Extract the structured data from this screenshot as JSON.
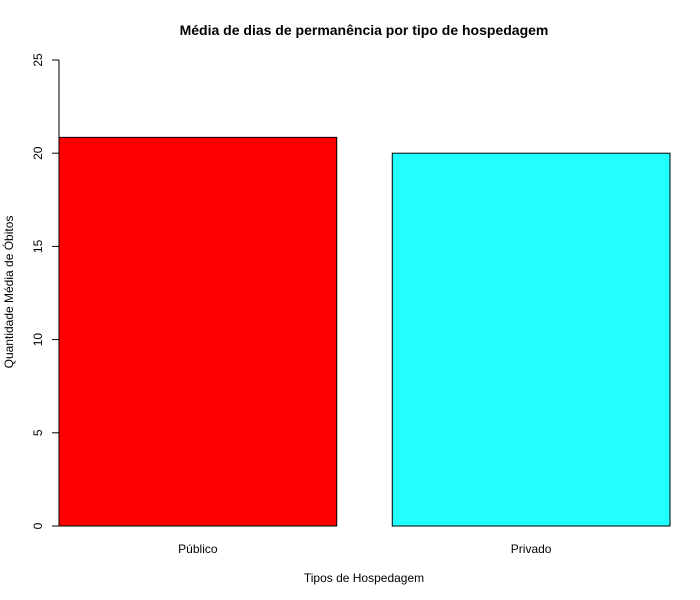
{
  "chart_data": {
    "type": "bar",
    "title": "Média de dias de permanência por tipo de hospedagem",
    "xlabel": "Tipos de Hospedagem",
    "ylabel": "Quantidade Média de Óbitos",
    "categories": [
      "Público",
      "Privado"
    ],
    "values": [
      20.85,
      20.0
    ],
    "colors": [
      "#ff0000",
      "#22ffff"
    ],
    "ylim": [
      0,
      25
    ],
    "yticks": [
      "0",
      "5",
      "10",
      "15",
      "20",
      "25"
    ],
    "grid": false,
    "legend": "none"
  }
}
